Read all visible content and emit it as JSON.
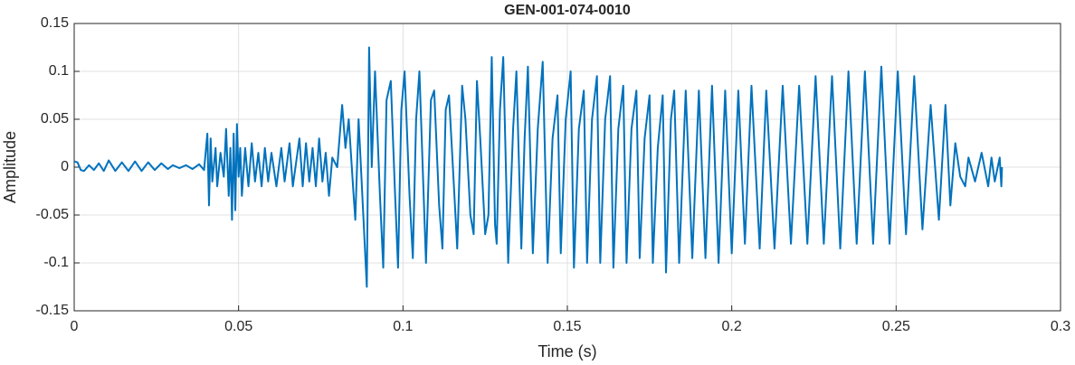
{
  "chart_data": {
    "type": "line",
    "title": "GEN-001-074-0010",
    "xlabel": "Time (s)",
    "ylabel": "Amplitude",
    "color": "#0072bd",
    "grid": true,
    "xlim": [
      0,
      0.3
    ],
    "xticks": [
      0,
      0.05,
      0.1,
      0.15,
      0.2,
      0.25,
      0.3
    ],
    "ylim": [
      -0.15,
      0.15
    ],
    "yticks": [
      -0.15,
      -0.1,
      -0.05,
      0,
      0.05,
      0.1,
      0.15
    ],
    "x": [
      0,
      0.001,
      0.002,
      0.003,
      0.0045,
      0.006,
      0.0075,
      0.009,
      0.0105,
      0.0125,
      0.0145,
      0.0165,
      0.0185,
      0.0205,
      0.0225,
      0.0245,
      0.0265,
      0.0285,
      0.03,
      0.032,
      0.034,
      0.036,
      0.038,
      0.0395,
      0.0405,
      0.041,
      0.0415,
      0.042,
      0.043,
      0.0435,
      0.0445,
      0.0455,
      0.0462,
      0.047,
      0.0475,
      0.048,
      0.0485,
      0.049,
      0.0495,
      0.05,
      0.0505,
      0.051,
      0.052,
      0.053,
      0.054,
      0.055,
      0.056,
      0.057,
      0.058,
      0.059,
      0.06,
      0.0615,
      0.063,
      0.064,
      0.0655,
      0.0665,
      0.0685,
      0.0695,
      0.0705,
      0.0715,
      0.0725,
      0.0735,
      0.0745,
      0.0755,
      0.0765,
      0.0775,
      0.0785,
      0.08,
      0.0815,
      0.0825,
      0.0835,
      0.085,
      0.0855,
      0.0865,
      0.0875,
      0.089,
      0.0897,
      0.0905,
      0.0915,
      0.093,
      0.094,
      0.095,
      0.0963,
      0.0975,
      0.0985,
      0.0995,
      0.1005,
      0.102,
      0.103,
      0.104,
      0.105,
      0.106,
      0.107,
      0.1085,
      0.1095,
      0.111,
      0.112,
      0.113,
      0.114,
      0.1155,
      0.1165,
      0.118,
      0.119,
      0.1205,
      0.1215,
      0.1225,
      0.1235,
      0.125,
      0.126,
      0.127,
      0.128,
      0.1285,
      0.1295,
      0.1305,
      0.132,
      0.1335,
      0.1345,
      0.136,
      0.137,
      0.138,
      0.1395,
      0.141,
      0.1425,
      0.144,
      0.1455,
      0.147,
      0.148,
      0.1495,
      0.151,
      0.152,
      0.1535,
      0.155,
      0.156,
      0.1575,
      0.159,
      0.16,
      0.1615,
      0.163,
      0.164,
      0.1655,
      0.167,
      0.168,
      0.1695,
      0.171,
      0.172,
      0.1735,
      0.175,
      0.176,
      0.1775,
      0.179,
      0.18,
      0.1815,
      0.1825,
      0.184,
      0.186,
      0.188,
      0.19,
      0.192,
      0.194,
      0.196,
      0.198,
      0.2,
      0.202,
      0.204,
      0.206,
      0.2085,
      0.2105,
      0.213,
      0.2155,
      0.218,
      0.2205,
      0.223,
      0.2255,
      0.228,
      0.2305,
      0.233,
      0.2355,
      0.238,
      0.2405,
      0.243,
      0.2455,
      0.248,
      0.2505,
      0.253,
      0.2555,
      0.258,
      0.2605,
      0.263,
      0.265,
      0.2665,
      0.268,
      0.2695,
      0.271,
      0.272,
      0.274,
      0.276,
      0.278,
      0.279,
      0.28,
      0.2815,
      0.282,
      0.2822
    ],
    "values": [
      0.006,
      0.005,
      -0.003,
      -0.004,
      0.002,
      -0.003,
      0.004,
      -0.004,
      0.007,
      -0.004,
      0.005,
      -0.004,
      0.006,
      -0.004,
      0.005,
      -0.003,
      0.004,
      -0.002,
      0.002,
      -0.001,
      0.002,
      -0.002,
      0.003,
      -0.003,
      0.035,
      -0.04,
      0.03,
      -0.015,
      0.02,
      -0.02,
      0.015,
      -0.01,
      0.04,
      -0.03,
      0.02,
      -0.055,
      0.035,
      -0.045,
      0.045,
      -0.01,
      0.02,
      -0.03,
      0.02,
      -0.02,
      0.025,
      -0.015,
      0.015,
      -0.02,
      0.02,
      -0.015,
      0.015,
      -0.02,
      0.02,
      -0.015,
      0.025,
      -0.02,
      0.03,
      -0.02,
      0.025,
      -0.015,
      0.02,
      -0.02,
      0.03,
      -0.015,
      0.015,
      -0.03,
      0.01,
      0.0,
      0.065,
      0.02,
      0.05,
      -0.03,
      -0.055,
      0.05,
      -0.02,
      -0.125,
      0.125,
      0.0,
      0.1,
      -0.03,
      -0.105,
      0.07,
      0.09,
      -0.02,
      -0.105,
      0.06,
      0.1,
      -0.03,
      -0.095,
      0.05,
      0.1,
      0.0,
      -0.1,
      0.07,
      0.08,
      -0.04,
      -0.085,
      0.06,
      0.075,
      -0.02,
      -0.085,
      0.085,
      0.05,
      -0.05,
      -0.07,
      0.09,
      0.03,
      -0.07,
      -0.05,
      0.115,
      -0.06,
      -0.08,
      0.06,
      0.115,
      -0.1,
      0.04,
      0.1,
      -0.085,
      0.03,
      0.105,
      -0.09,
      0.04,
      0.11,
      -0.1,
      0.03,
      0.075,
      -0.09,
      0.05,
      0.1,
      -0.105,
      0.04,
      0.08,
      -0.1,
      0.05,
      0.095,
      -0.1,
      0.05,
      0.095,
      -0.105,
      0.04,
      0.085,
      -0.1,
      0.04,
      0.08,
      -0.095,
      0.03,
      0.075,
      -0.1,
      0.02,
      0.075,
      -0.11,
      0.05,
      0.08,
      -0.1,
      0.08,
      -0.095,
      0.08,
      -0.095,
      0.085,
      -0.1,
      0.08,
      -0.09,
      0.08,
      -0.08,
      0.085,
      -0.085,
      0.08,
      -0.085,
      0.085,
      -0.08,
      0.085,
      -0.08,
      0.095,
      -0.08,
      0.095,
      -0.085,
      0.1,
      -0.08,
      0.1,
      -0.08,
      0.105,
      -0.08,
      0.1,
      -0.07,
      0.095,
      -0.065,
      0.065,
      -0.055,
      0.065,
      -0.04,
      0.025,
      -0.01,
      -0.02,
      0.01,
      -0.015,
      0.015,
      -0.02,
      0.01,
      -0.015,
      0.01,
      -0.02,
      0.0
    ]
  }
}
